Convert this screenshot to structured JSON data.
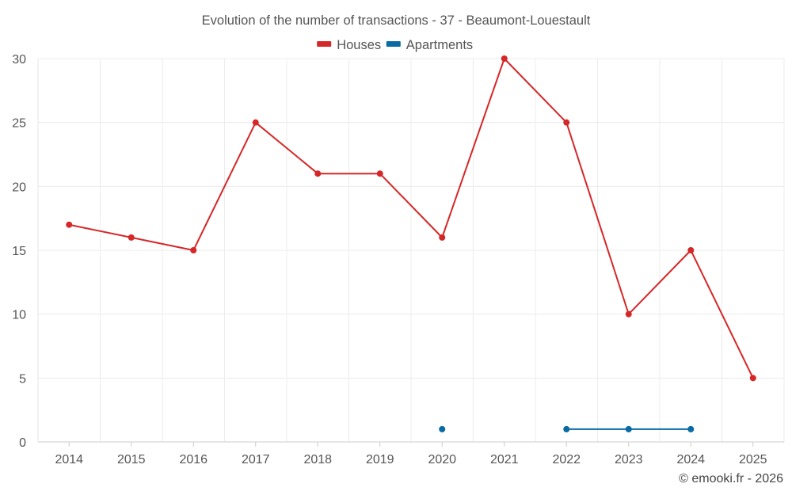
{
  "chart_data": {
    "type": "line",
    "title": "Evolution of the number of transactions - 37 - Beaumont-Louestault",
    "categories": [
      "2014",
      "2015",
      "2016",
      "2017",
      "2018",
      "2019",
      "2020",
      "2021",
      "2022",
      "2023",
      "2024",
      "2025"
    ],
    "y_ticks": [
      "0",
      "5",
      "10",
      "15",
      "20",
      "25",
      "30"
    ],
    "ylim": [
      0,
      30
    ],
    "xlabel": "",
    "ylabel": "",
    "grid": true,
    "legend_position": "top-center",
    "series": [
      {
        "name": "Houses",
        "color": "#d62728",
        "values": [
          17,
          16,
          15,
          25,
          21,
          21,
          16,
          30,
          25,
          10,
          15,
          5
        ]
      },
      {
        "name": "Apartments",
        "color": "#0a6ba3",
        "values": [
          null,
          null,
          null,
          null,
          null,
          null,
          1,
          null,
          1,
          1,
          1,
          null
        ]
      }
    ],
    "credit": "© emooki.fr - 2026"
  }
}
